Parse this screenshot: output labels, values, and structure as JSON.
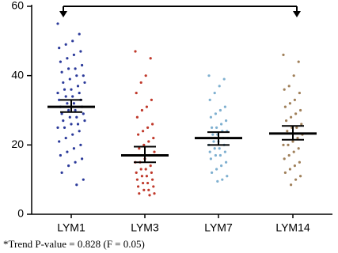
{
  "chart_data": {
    "type": "dotplot",
    "categories": [
      "LYM1",
      "LYM3",
      "LYM7",
      "LYM14"
    ],
    "ylim": [
      0,
      60
    ],
    "yticks": [
      0,
      20,
      40,
      60
    ],
    "annotation": "*Trend P-value = 0.828 (F = 0.05)",
    "groups": [
      {
        "color": "#2b3a9a",
        "mean": 31,
        "ci": [
          29.5,
          33
        ],
        "points": [
          55,
          52,
          50,
          49,
          48,
          47,
          46,
          45,
          44,
          43,
          42,
          42,
          41,
          40,
          40,
          39,
          38,
          38,
          37,
          36,
          36,
          35,
          35,
          34,
          34,
          33,
          33,
          32,
          32,
          31,
          31,
          30,
          30,
          29,
          29,
          28,
          28,
          27,
          27,
          26,
          26,
          25,
          25,
          24,
          23,
          22,
          21,
          20,
          19,
          18,
          17,
          16,
          15,
          14,
          12,
          10,
          8.5
        ]
      },
      {
        "color": "#c0392b",
        "mean": 17,
        "ci": [
          15,
          19.5
        ],
        "points": [
          47,
          45,
          40,
          38,
          35,
          33,
          31,
          30,
          28,
          26,
          25,
          24,
          23,
          22,
          21,
          20,
          19,
          18,
          17,
          16,
          15,
          15,
          14,
          13,
          13,
          12,
          12,
          11,
          11,
          10,
          10,
          9,
          9,
          8,
          8,
          7,
          7,
          6,
          6,
          5.5
        ]
      },
      {
        "color": "#7fb0d0",
        "mean": 22,
        "ci": [
          20,
          23.7
        ],
        "points": [
          40,
          39,
          37,
          35,
          33,
          31,
          30,
          29,
          28,
          27,
          26,
          25,
          25,
          24,
          24,
          23,
          23,
          22,
          22,
          21,
          21,
          20,
          20,
          19,
          19,
          18,
          18,
          17,
          17,
          16,
          15,
          14,
          13,
          12,
          11,
          10,
          9.5
        ]
      },
      {
        "color": "#a0805a",
        "mean": 23.3,
        "ci": [
          21.5,
          25.5
        ],
        "points": [
          46,
          44,
          40,
          37,
          36,
          35,
          33,
          32,
          31,
          30,
          29,
          28,
          27,
          26,
          25,
          25,
          24,
          23,
          22,
          21,
          20,
          20,
          19,
          18,
          17,
          16,
          15,
          14,
          13,
          12,
          11,
          10,
          8.5
        ]
      }
    ]
  }
}
